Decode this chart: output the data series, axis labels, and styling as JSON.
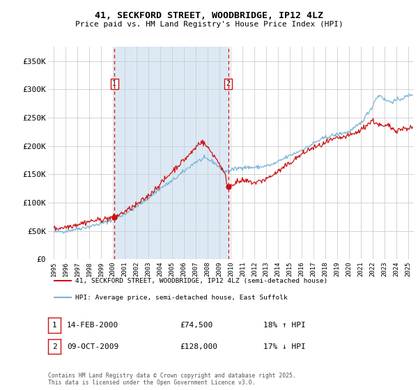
{
  "title": "41, SECKFORD STREET, WOODBRIDGE, IP12 4LZ",
  "subtitle": "Price paid vs. HM Land Registry's House Price Index (HPI)",
  "legend_line1": "41, SECKFORD STREET, WOODBRIDGE, IP12 4LZ (semi-detached house)",
  "legend_line2": "HPI: Average price, semi-detached house, East Suffolk",
  "annotation1_label": "1",
  "annotation1_date": "14-FEB-2000",
  "annotation1_price": "£74,500",
  "annotation1_hpi": "18% ↑ HPI",
  "annotation2_label": "2",
  "annotation2_date": "09-OCT-2009",
  "annotation2_price": "£128,000",
  "annotation2_hpi": "17% ↓ HPI",
  "footer": "Contains HM Land Registry data © Crown copyright and database right 2025.\nThis data is licensed under the Open Government Licence v3.0.",
  "sale1_year": 2000.12,
  "sale1_price": 74500,
  "sale2_year": 2009.77,
  "sale2_price": 128000,
  "hpi_color": "#7ab3d4",
  "price_color": "#cc1111",
  "vline_color": "#cc1111",
  "bg_shaded_color": "#dce9f5",
  "grid_color": "#cccccc",
  "ylim_min": 0,
  "ylim_max": 375000,
  "xlim_min": 1994.5,
  "xlim_max": 2025.5,
  "yticks": [
    0,
    50000,
    100000,
    150000,
    200000,
    250000,
    300000,
    350000
  ],
  "xtick_start": 1995,
  "xtick_end": 2025
}
